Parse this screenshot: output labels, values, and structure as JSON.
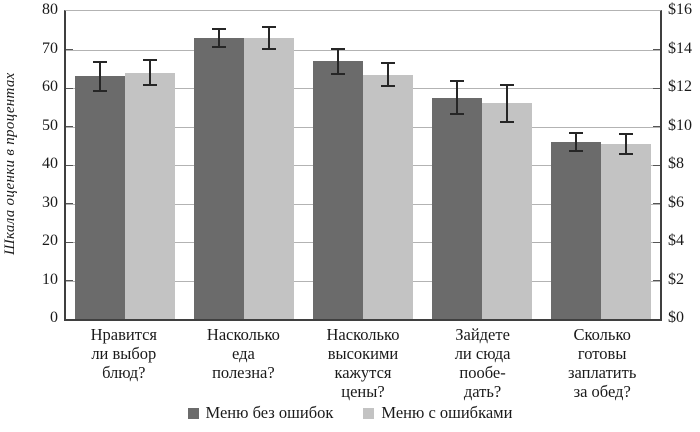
{
  "chart_data": {
    "type": "bar",
    "title": "",
    "ylabel_left": "Шкала оценки в процентах",
    "ylabel_right": "",
    "axis_left": {
      "min": 0,
      "max": 80,
      "step": 10,
      "ticks_top_to_bottom": [
        "80",
        "70",
        "60",
        "50",
        "40",
        "30",
        "20",
        "10",
        "0"
      ]
    },
    "axis_right": {
      "min": 0,
      "max": 16,
      "step": 2,
      "ticks_top_to_bottom": [
        "$16",
        "$14",
        "$12",
        "$10",
        "$8",
        "$6",
        "$4",
        "$2",
        "$0"
      ]
    },
    "grid": true,
    "legend_position": "bottom",
    "categories": [
      [
        "Нравится",
        "ли выбор",
        "блюд?"
      ],
      [
        "Насколько",
        "еда",
        "полезна?"
      ],
      [
        "Насколько",
        "высокими",
        "кажутся",
        "цены?"
      ],
      [
        "Зайдете",
        "ли сюда",
        "пообе-",
        "дать?"
      ],
      [
        "Сколько",
        "готовы",
        "заплатить",
        "за обед?"
      ]
    ],
    "series": [
      {
        "name": "Меню без ошибок",
        "color": "#6b6b6b",
        "values": [
          63,
          73,
          67,
          57.5,
          46
        ],
        "errors": [
          4,
          2.5,
          3.5,
          4.5,
          2.5
        ]
      },
      {
        "name": "Меню с ошибками",
        "color": "#c3c3c3",
        "values": [
          64,
          73,
          63.5,
          56,
          45.5
        ],
        "errors": [
          3.5,
          3,
          3.3,
          5,
          2.8
        ]
      }
    ]
  },
  "colors": {
    "axis": "#3f3f3f",
    "gridline": "#b3b3b3",
    "error_bar": "#262626",
    "text": "#1a1a1a"
  }
}
